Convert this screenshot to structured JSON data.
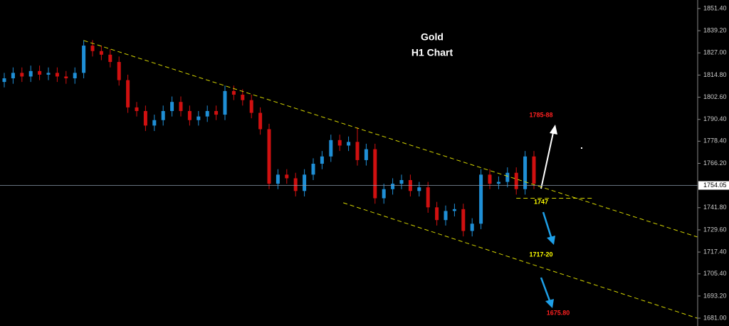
{
  "chart_data": {
    "type": "candlestick",
    "title": "Gold",
    "subtitle": "H1 Chart",
    "ylim": [
      1676.7,
      1856.1
    ],
    "yticks": [
      {
        "value": 1851.4,
        "label": "1851.40"
      },
      {
        "value": 1839.2,
        "label": "1839.20"
      },
      {
        "value": 1827,
        "label": "1827.00"
      },
      {
        "value": 1814.8,
        "label": "1814.80"
      },
      {
        "value": 1802.6,
        "label": "1802.60"
      },
      {
        "value": 1790.4,
        "label": "1790.40"
      },
      {
        "value": 1778.4,
        "label": "1778.40"
      },
      {
        "value": 1766.2,
        "label": "1766.20"
      },
      {
        "value": 1741.8,
        "label": "1741.80"
      },
      {
        "value": 1729.6,
        "label": "1729.60"
      },
      {
        "value": 1717.4,
        "label": "1717.40"
      },
      {
        "value": 1705.4,
        "label": "1705.40"
      },
      {
        "value": 1693.2,
        "label": "1693.20"
      },
      {
        "value": 1681,
        "label": "1681.00"
      }
    ],
    "last_price": {
      "value": 1754.05,
      "label": "1754.05"
    },
    "up_color": "#1f8fd6",
    "down_color": "#d01010",
    "open": [
      1811,
      1813,
      1816,
      1814,
      1817,
      1815,
      1816,
      1814,
      1813,
      1816,
      1831,
      1828,
      1826,
      1822,
      1812,
      1797,
      1795,
      1787,
      1790,
      1795,
      1800,
      1795,
      1790,
      1792,
      1795,
      1793,
      1806,
      1804,
      1801,
      1794,
      1785,
      1755,
      1760,
      1758,
      1751,
      1760,
      1766,
      1770,
      1779,
      1776,
      1778,
      1768,
      1774,
      1747,
      1752,
      1755,
      1757,
      1751,
      1753,
      1742,
      1735,
      1740,
      1741,
      1729,
      1733,
      1760,
      1755,
      1756,
      1761,
      1752,
      1770
    ],
    "high": [
      1816,
      1819,
      1819,
      1820,
      1820,
      1819,
      1819,
      1817,
      1819,
      1834,
      1834,
      1831,
      1829,
      1825,
      1815,
      1800,
      1798,
      1793,
      1798,
      1803,
      1803,
      1798,
      1795,
      1798,
      1798,
      1809,
      1809,
      1807,
      1804,
      1797,
      1788,
      1763,
      1763,
      1761,
      1763,
      1769,
      1773,
      1782,
      1782,
      1781,
      1786,
      1777,
      1777,
      1755,
      1758,
      1760,
      1760,
      1756,
      1756,
      1745,
      1743,
      1744,
      1744,
      1736,
      1763,
      1763,
      1759,
      1764,
      1764,
      1773,
      1773
    ],
    "low": [
      1808,
      1810,
      1811,
      1811,
      1812,
      1812,
      1811,
      1810,
      1810,
      1813,
      1825,
      1823,
      1819,
      1809,
      1794,
      1792,
      1784,
      1784,
      1787,
      1792,
      1792,
      1787,
      1787,
      1789,
      1790,
      1790,
      1801,
      1798,
      1791,
      1782,
      1752,
      1752,
      1755,
      1748,
      1748,
      1757,
      1763,
      1767,
      1773,
      1773,
      1765,
      1765,
      1744,
      1744,
      1749,
      1752,
      1748,
      1748,
      1739,
      1732,
      1732,
      1737,
      1726,
      1726,
      1730,
      1752,
      1752,
      1753,
      1749,
      1749,
      1752
    ],
    "close": [
      1813,
      1816,
      1814,
      1817,
      1815,
      1816,
      1814,
      1813,
      1816,
      1831,
      1828,
      1826,
      1822,
      1812,
      1797,
      1795,
      1787,
      1790,
      1795,
      1800,
      1795,
      1790,
      1792,
      1795,
      1793,
      1806,
      1804,
      1801,
      1794,
      1785,
      1755,
      1760,
      1758,
      1751,
      1760,
      1766,
      1770,
      1779,
      1776,
      1778,
      1768,
      1774,
      1747,
      1752,
      1755,
      1757,
      1751,
      1753,
      1742,
      1735,
      1740,
      1741,
      1729,
      1733,
      1760,
      1755,
      1756,
      1761,
      1752,
      1770,
      1755
    ],
    "trendlines": [
      {
        "x": [
          9,
          78.5
        ],
        "y": [
          1833.8,
          1725.7
        ],
        "color": "#d4d400"
      },
      {
        "x": [
          38.4,
          78.5
        ],
        "y": [
          1744.5,
          1681
        ],
        "color": "#d4d400"
      },
      {
        "x": [
          58,
          66.7
        ],
        "y": [
          1747,
          1747
        ],
        "color": "#d4d400"
      }
    ],
    "annotations": [
      {
        "text": "1785-88",
        "color": "#ff2020"
      },
      {
        "text": "1747",
        "color": "#ffff00"
      },
      {
        "text": "1717-20",
        "color": "#ffff00"
      },
      {
        "text": "1675.80",
        "color": "#ff2020"
      }
    ]
  }
}
